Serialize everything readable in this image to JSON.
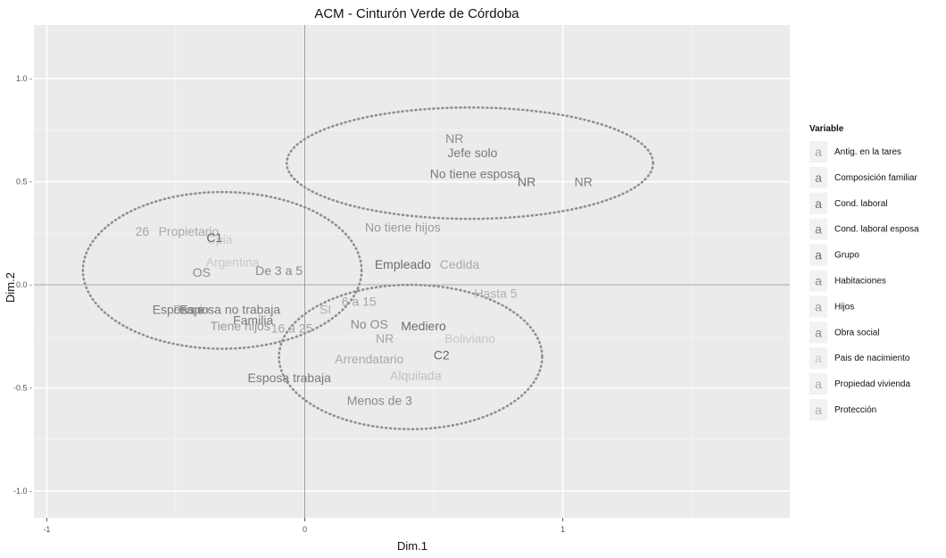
{
  "chart_data": {
    "type": "scatter",
    "title": "ACM - Cinturón Verde de Córdoba",
    "xlabel": "Dim.1",
    "ylabel": "Dim.2",
    "xlim": [
      -1.05,
      1.88
    ],
    "ylim": [
      -1.13,
      1.26
    ],
    "xticks": [
      {
        "value": -1,
        "label": "-1"
      },
      {
        "value": 0,
        "label": "0"
      },
      {
        "value": 1,
        "label": "1"
      }
    ],
    "yticks": [
      {
        "value": 1.0,
        "label": "1.0 -"
      },
      {
        "value": 0.5,
        "label": "0.5 -"
      },
      {
        "value": 0.0,
        "label": "0.0 -"
      },
      {
        "value": -0.5,
        "label": "-0.5 -"
      },
      {
        "value": -1.0,
        "label": "-1.0 -"
      }
    ],
    "grid": true,
    "legend": {
      "title": "Variable",
      "position": "right",
      "items": [
        {
          "key": "a",
          "label": "Antig. en la tares",
          "color": "#a6a6a6"
        },
        {
          "key": "a",
          "label": "Composición familiar",
          "color": "#7a7a7a"
        },
        {
          "key": "a",
          "label": "Cond. laboral",
          "color": "#6e6e6e"
        },
        {
          "key": "a",
          "label": "Cond. laboral esposa",
          "color": "#7a7a7a"
        },
        {
          "key": "a",
          "label": "Grupo",
          "color": "#6a6a6a"
        },
        {
          "key": "a",
          "label": "Habitaciones",
          "color": "#8a8a8a"
        },
        {
          "key": "a",
          "label": "Hijos",
          "color": "#9a9a9a"
        },
        {
          "key": "a",
          "label": "Obra social",
          "color": "#8a8a8a"
        },
        {
          "key": "a",
          "label": "Pais de nacimiento",
          "color": "#c8c8c8"
        },
        {
          "key": "a",
          "label": "Propiedad vivienda",
          "color": "#a9a9a9"
        },
        {
          "key": "a",
          "label": "Protección",
          "color": "#b0b0b0"
        }
      ]
    },
    "points": [
      {
        "label": "NR",
        "x": 0.58,
        "y": 0.71,
        "color": "#8a8a8a"
      },
      {
        "label": "Jefe solo",
        "x": 0.65,
        "y": 0.64,
        "color": "#7a7a7a"
      },
      {
        "label": "No tiene esposa",
        "x": 0.66,
        "y": 0.54,
        "color": "#7a7a7a"
      },
      {
        "label": "NR",
        "x": 0.86,
        "y": 0.5,
        "color": "#6e6e6e"
      },
      {
        "label": "NR",
        "x": 1.08,
        "y": 0.5,
        "color": "#7a7a7a"
      },
      {
        "label": "No tiene hijos",
        "x": 0.38,
        "y": 0.28,
        "color": "#9a9a9a"
      },
      {
        "label": "Empleado",
        "x": 0.38,
        "y": 0.1,
        "color": "#6e6e6e"
      },
      {
        "label": "Cedida",
        "x": 0.6,
        "y": 0.1,
        "color": "#a9a9a9"
      },
      {
        "label": "Hasta 5",
        "x": 0.74,
        "y": -0.04,
        "color": "#b0b0b0"
      },
      {
        "label": "26",
        "x": -0.63,
        "y": 0.26,
        "color": "#a6a6a6"
      },
      {
        "label": "Propietario",
        "x": -0.45,
        "y": 0.26,
        "color": "#a9a9a9"
      },
      {
        "label": "Cpia",
        "x": -0.33,
        "y": 0.22,
        "color": "#c8c8c8"
      },
      {
        "label": "C1",
        "x": -0.35,
        "y": 0.23,
        "color": "#6a6a6a"
      },
      {
        "label": "Argentina",
        "x": -0.28,
        "y": 0.11,
        "color": "#c8c8c8"
      },
      {
        "label": "OS",
        "x": -0.4,
        "y": 0.06,
        "color": "#8a8a8a"
      },
      {
        "label": "De 3 a 5",
        "x": -0.1,
        "y": 0.07,
        "color": "#8a8a8a"
      },
      {
        "label": "Esposa no trabaja",
        "x": -0.29,
        "y": -0.12,
        "color": "#7a7a7a"
      },
      {
        "label": "Propio",
        "x": -0.44,
        "y": -0.12,
        "color": "#a9a9a9"
      },
      {
        "label": "Esposa e",
        "x": -0.49,
        "y": -0.12,
        "color": "#7a7a7a"
      },
      {
        "label": "Tiene hijos",
        "x": -0.25,
        "y": -0.2,
        "color": "#9a9a9a"
      },
      {
        "label": "Familia",
        "x": -0.2,
        "y": -0.17,
        "color": "#7a7a7a"
      },
      {
        "label": "SI",
        "x": 0.08,
        "y": -0.12,
        "color": "#b0b0b0"
      },
      {
        "label": "6 a 15",
        "x": 0.21,
        "y": -0.08,
        "color": "#a6a6a6"
      },
      {
        "label": "16 a 25",
        "x": -0.05,
        "y": -0.21,
        "color": "#a6a6a6"
      },
      {
        "label": "No OS",
        "x": 0.25,
        "y": -0.19,
        "color": "#8a8a8a"
      },
      {
        "label": "Mediero",
        "x": 0.46,
        "y": -0.2,
        "color": "#6e6e6e"
      },
      {
        "label": "NR",
        "x": 0.31,
        "y": -0.26,
        "color": "#a6a6a6"
      },
      {
        "label": "Boliviano",
        "x": 0.64,
        "y": -0.26,
        "color": "#c8c8c8"
      },
      {
        "label": "Arrendatario",
        "x": 0.25,
        "y": -0.36,
        "color": "#a9a9a9"
      },
      {
        "label": "C2",
        "x": 0.53,
        "y": -0.34,
        "color": "#6a6a6a"
      },
      {
        "label": "Esposa trabaja",
        "x": -0.06,
        "y": -0.45,
        "color": "#7a7a7a"
      },
      {
        "label": "Alquilada",
        "x": 0.43,
        "y": -0.44,
        "color": "#c0c0c0"
      },
      {
        "label": "Menos de 3",
        "x": 0.29,
        "y": -0.56,
        "color": "#8a8a8a"
      }
    ],
    "ellipses": [
      {
        "cx": 0.64,
        "cy": 0.59,
        "rx": 0.71,
        "ry": 0.27
      },
      {
        "cx": -0.32,
        "cy": 0.07,
        "rx": 0.54,
        "ry": 0.38
      },
      {
        "cx": 0.41,
        "cy": -0.35,
        "rx": 0.51,
        "ry": 0.35
      }
    ]
  }
}
